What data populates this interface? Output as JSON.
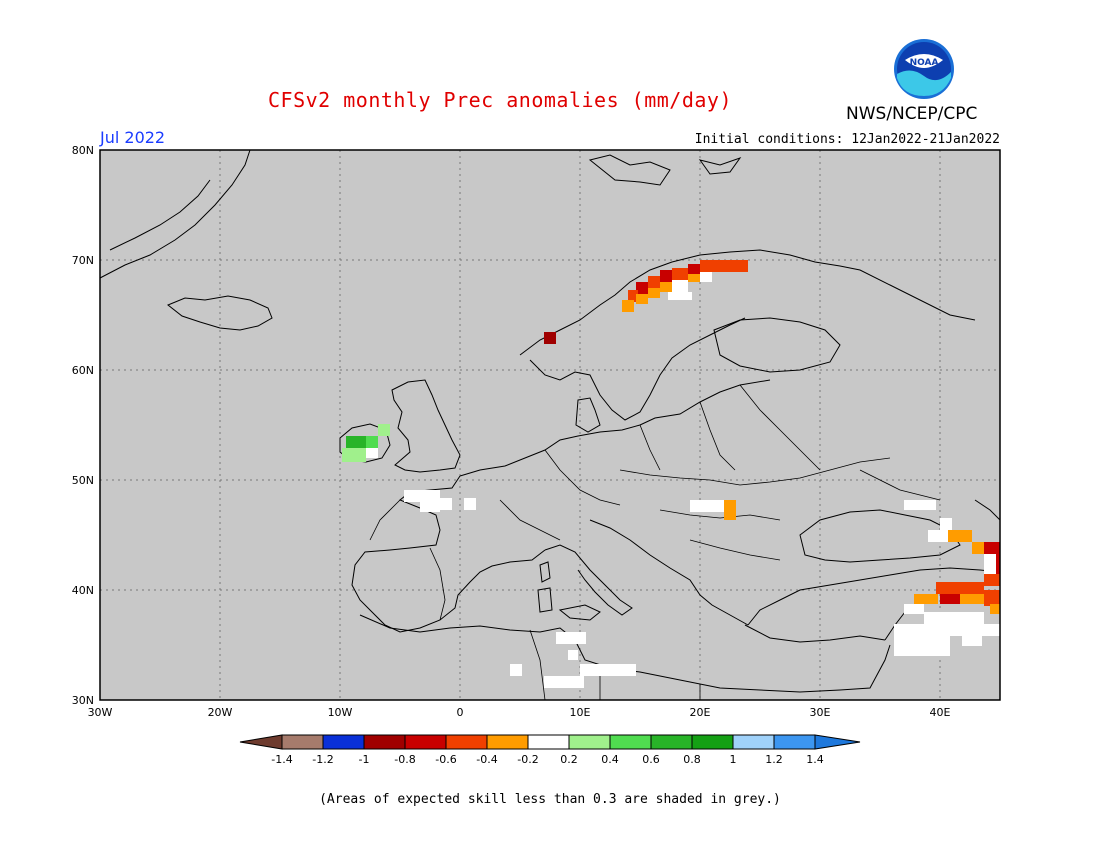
{
  "header": {
    "title": "CFSv2 monthly Prec anomalies (mm/day)",
    "agency": "NWS/NCEP/CPC",
    "logo_text": "NOAA",
    "period": "Jul 2022",
    "initial_conditions": "Initial conditions: 12Jan2022-21Jan2022"
  },
  "map": {
    "lat_labels": [
      "80N",
      "70N",
      "60N",
      "50N",
      "40N",
      "30N"
    ],
    "lon_labels": [
      "30W",
      "20W",
      "10W",
      "0",
      "10E",
      "20E",
      "30E",
      "40E"
    ],
    "background_color": "#c8c8c8",
    "grid": "dotted"
  },
  "legend": {
    "ticks": [
      "-1.4",
      "-1.2",
      "-1",
      "-0.8",
      "-0.6",
      "-0.4",
      "-0.2",
      "0.2",
      "0.4",
      "0.6",
      "0.8",
      "1",
      "1.2",
      "1.4"
    ],
    "colors": [
      "#6e3b2e",
      "#a67b6c",
      "#0a30d8",
      "#a00000",
      "#c80000",
      "#f04000",
      "#ff9c00",
      "#ffffff",
      "#a0f08c",
      "#50dc50",
      "#28b428",
      "#14a014",
      "#a0d2fa",
      "#3c96f0",
      "#1e78dc"
    ]
  },
  "footnote": "(Areas of expected skill less than 0.3 are shaded in grey.)"
}
